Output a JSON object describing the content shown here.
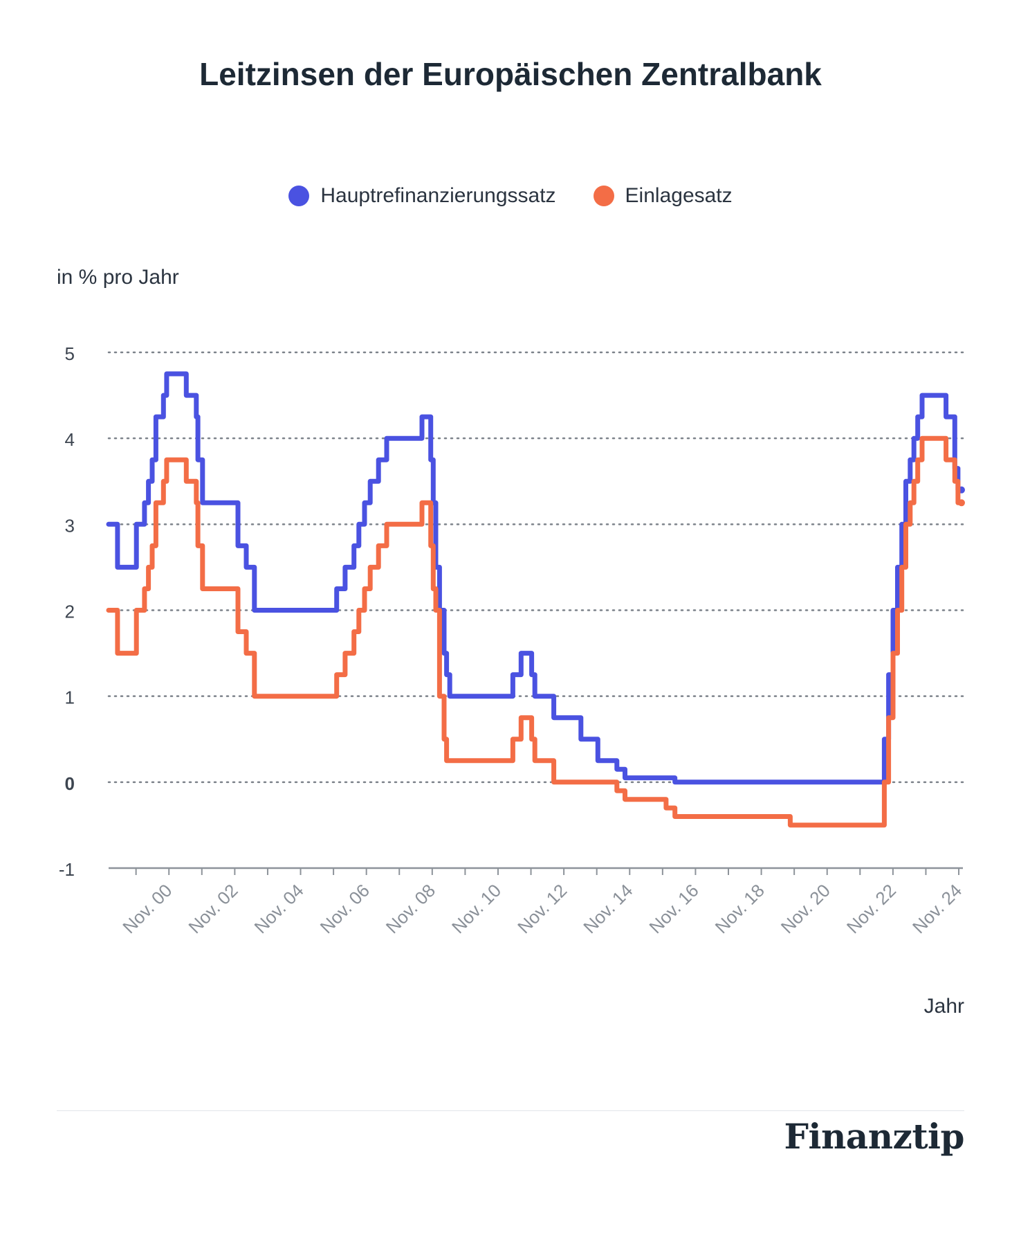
{
  "chart_data": {
    "type": "line",
    "title": "Leitzinsen der Europäischen Zentralbank",
    "ylabel": "in % pro Jahr",
    "xlabel": "Jahr",
    "ylim": [
      -1,
      5
    ],
    "yticks": [
      -1,
      0,
      1,
      2,
      3,
      4,
      5
    ],
    "xticks": [
      "Nov. 00",
      "Nov. 02",
      "Nov. 04",
      "Nov. 06",
      "Nov. 08",
      "Nov. 10",
      "Nov. 12",
      "Nov. 14",
      "Nov. 16",
      "Nov. 18",
      "Nov. 20",
      "Nov. 22",
      "Nov. 24"
    ],
    "grid": true,
    "legend": "top-center",
    "series": [
      {
        "name": "Hauptrefinanzierungssatz",
        "color": "#4a52e1",
        "points": [
          [
            "1999-01-01",
            3.0
          ],
          [
            "1999-04-09",
            2.5
          ],
          [
            "1999-11-05",
            3.0
          ],
          [
            "2000-02-04",
            3.25
          ],
          [
            "2000-03-17",
            3.5
          ],
          [
            "2000-04-28",
            3.75
          ],
          [
            "2000-06-09",
            4.25
          ],
          [
            "2000-09-01",
            4.5
          ],
          [
            "2000-10-06",
            4.75
          ],
          [
            "2001-05-11",
            4.5
          ],
          [
            "2001-08-31",
            4.25
          ],
          [
            "2001-09-18",
            3.75
          ],
          [
            "2001-11-09",
            3.25
          ],
          [
            "2002-12-06",
            2.75
          ],
          [
            "2003-03-07",
            2.5
          ],
          [
            "2003-06-06",
            2.0
          ],
          [
            "2005-12-06",
            2.25
          ],
          [
            "2006-03-08",
            2.5
          ],
          [
            "2006-06-15",
            2.75
          ],
          [
            "2006-08-09",
            3.0
          ],
          [
            "2006-10-11",
            3.25
          ],
          [
            "2006-12-13",
            3.5
          ],
          [
            "2007-03-14",
            3.75
          ],
          [
            "2007-06-13",
            4.0
          ],
          [
            "2008-07-09",
            4.25
          ],
          [
            "2008-10-15",
            3.75
          ],
          [
            "2008-11-12",
            3.25
          ],
          [
            "2008-12-10",
            2.5
          ],
          [
            "2009-01-21",
            2.0
          ],
          [
            "2009-03-11",
            1.5
          ],
          [
            "2009-04-08",
            1.25
          ],
          [
            "2009-05-13",
            1.0
          ],
          [
            "2011-04-13",
            1.25
          ],
          [
            "2011-07-13",
            1.5
          ],
          [
            "2011-11-09",
            1.25
          ],
          [
            "2011-12-14",
            1.0
          ],
          [
            "2012-07-11",
            0.75
          ],
          [
            "2013-05-08",
            0.5
          ],
          [
            "2013-11-13",
            0.25
          ],
          [
            "2014-06-11",
            0.15
          ],
          [
            "2014-09-10",
            0.05
          ],
          [
            "2016-03-16",
            0.0
          ],
          [
            "2022-07-27",
            0.5
          ],
          [
            "2022-09-14",
            1.25
          ],
          [
            "2022-11-02",
            2.0
          ],
          [
            "2022-12-21",
            2.5
          ],
          [
            "2023-02-08",
            3.0
          ],
          [
            "2023-03-22",
            3.5
          ],
          [
            "2023-05-10",
            3.75
          ],
          [
            "2023-06-21",
            4.0
          ],
          [
            "2023-08-02",
            4.25
          ],
          [
            "2023-09-20",
            4.5
          ],
          [
            "2024-06-12",
            4.25
          ],
          [
            "2024-09-18",
            3.65
          ],
          [
            "2024-10-23",
            3.4
          ],
          [
            "2024-12-01",
            3.4
          ]
        ]
      },
      {
        "name": "Einlagesatz",
        "color": "#f36d46",
        "points": [
          [
            "1999-01-01",
            2.0
          ],
          [
            "1999-04-09",
            1.5
          ],
          [
            "1999-11-05",
            2.0
          ],
          [
            "2000-02-04",
            2.25
          ],
          [
            "2000-03-17",
            2.5
          ],
          [
            "2000-04-28",
            2.75
          ],
          [
            "2000-06-09",
            3.25
          ],
          [
            "2000-09-01",
            3.5
          ],
          [
            "2000-10-06",
            3.75
          ],
          [
            "2001-05-11",
            3.5
          ],
          [
            "2001-08-31",
            3.25
          ],
          [
            "2001-09-18",
            2.75
          ],
          [
            "2001-11-09",
            2.25
          ],
          [
            "2002-12-06",
            1.75
          ],
          [
            "2003-03-07",
            1.5
          ],
          [
            "2003-06-06",
            1.0
          ],
          [
            "2005-12-06",
            1.25
          ],
          [
            "2006-03-08",
            1.5
          ],
          [
            "2006-06-15",
            1.75
          ],
          [
            "2006-08-09",
            2.0
          ],
          [
            "2006-10-11",
            2.25
          ],
          [
            "2006-12-13",
            2.5
          ],
          [
            "2007-03-14",
            2.75
          ],
          [
            "2007-06-13",
            3.0
          ],
          [
            "2008-07-09",
            3.25
          ],
          [
            "2008-10-15",
            2.75
          ],
          [
            "2008-11-12",
            2.25
          ],
          [
            "2008-12-10",
            2.0
          ],
          [
            "2009-01-21",
            1.0
          ],
          [
            "2009-03-11",
            0.5
          ],
          [
            "2009-04-08",
            0.25
          ],
          [
            "2011-04-13",
            0.5
          ],
          [
            "2011-07-13",
            0.75
          ],
          [
            "2011-11-09",
            0.5
          ],
          [
            "2011-12-14",
            0.25
          ],
          [
            "2012-07-11",
            0.0
          ],
          [
            "2014-06-11",
            -0.1
          ],
          [
            "2014-09-10",
            -0.2
          ],
          [
            "2015-12-09",
            -0.3
          ],
          [
            "2016-03-16",
            -0.4
          ],
          [
            "2019-09-18",
            -0.5
          ],
          [
            "2022-07-27",
            0.0
          ],
          [
            "2022-09-14",
            0.75
          ],
          [
            "2022-11-02",
            1.5
          ],
          [
            "2022-12-21",
            2.0
          ],
          [
            "2023-02-08",
            2.5
          ],
          [
            "2023-03-22",
            3.0
          ],
          [
            "2023-05-10",
            3.25
          ],
          [
            "2023-06-21",
            3.5
          ],
          [
            "2023-08-02",
            3.75
          ],
          [
            "2023-09-20",
            4.0
          ],
          [
            "2024-06-12",
            3.75
          ],
          [
            "2024-09-18",
            3.5
          ],
          [
            "2024-10-23",
            3.25
          ],
          [
            "2024-12-01",
            3.25
          ]
        ]
      }
    ]
  },
  "branding": {
    "logo_text": "Finanztip"
  }
}
